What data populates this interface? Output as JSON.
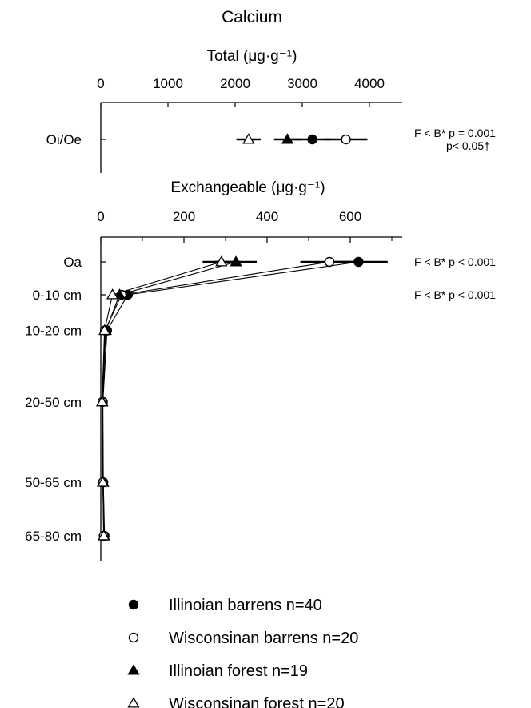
{
  "chart_data": [
    {
      "type": "scatter",
      "title": "Calcium",
      "xlabel": "Total (μg·g⁻¹)",
      "xlim": [
        0,
        4500
      ],
      "x_ticks": [
        0,
        1000,
        2000,
        3000,
        4000
      ],
      "categories": [
        "Oi/Oe"
      ],
      "series": [
        {
          "name": "Illinoian barrens",
          "marker": "filled-circle",
          "values": [
            3150
          ],
          "error": [
            280
          ]
        },
        {
          "name": "Wisconsinan barrens",
          "marker": "open-circle",
          "values": [
            3650
          ],
          "error": [
            320
          ]
        },
        {
          "name": "Illinoian forest",
          "marker": "filled-triangle",
          "values": [
            2780
          ],
          "error": [
            200
          ]
        },
        {
          "name": "Wisconsinan forest",
          "marker": "open-triangle",
          "values": [
            2200
          ],
          "error": [
            180
          ]
        }
      ],
      "annotations": [
        {
          "category": "Oi/Oe",
          "lines": [
            "F < B*   p = 0.001",
            "p< 0.05†"
          ]
        }
      ]
    },
    {
      "type": "line",
      "xlabel": "Exchangeable (μg·g⁻¹)",
      "xlim": [
        0,
        700
      ],
      "x_ticks": [
        0,
        200,
        400,
        600
      ],
      "categories": [
        "Oa",
        "0-10 cm",
        "10-20 cm",
        "20-50 cm",
        "50-65 cm",
        "65-80 cm"
      ],
      "category_depth_cm": [
        -8,
        0,
        10,
        20,
        50,
        65,
        80
      ],
      "series": [
        {
          "name": "Illinoian barrens",
          "marker": "filled-circle",
          "values": [
            620,
            65,
            15,
            5,
            6,
            9
          ],
          "error": [
            70,
            0,
            0,
            0,
            0,
            0
          ]
        },
        {
          "name": "Wisconsinan barrens",
          "marker": "open-circle",
          "values": [
            550,
            50,
            10,
            4,
            5,
            7
          ],
          "error": [
            70,
            0,
            0,
            0,
            0,
            0
          ]
        },
        {
          "name": "Illinoian forest",
          "marker": "filled-triangle",
          "values": [
            325,
            45,
            12,
            4,
            6,
            8
          ],
          "error": [
            50,
            0,
            0,
            0,
            0,
            0
          ]
        },
        {
          "name": "Wisconsinan forest",
          "marker": "open-triangle",
          "values": [
            290,
            28,
            9,
            3,
            5,
            7
          ],
          "error": [
            45,
            0,
            0,
            0,
            0,
            0
          ]
        }
      ],
      "annotations": [
        {
          "category": "Oa",
          "lines": [
            "F < B*   p < 0.001"
          ]
        },
        {
          "category": "0-10 cm",
          "lines": [
            "F < B*   p < 0.001"
          ]
        }
      ]
    }
  ],
  "legend": {
    "placement": "bottom",
    "items": [
      {
        "label": "Illinoian barrens   n=40",
        "marker": "filled-circle"
      },
      {
        "label": "Wisconsinan barrens   n=20",
        "marker": "open-circle"
      },
      {
        "label": "Illinoian forest   n=19",
        "marker": "filled-triangle"
      },
      {
        "label": "Wisconsinan forest   n=20",
        "marker": "open-triangle"
      }
    ]
  },
  "colors": {
    "ink": "#000000",
    "open_fill": "#ffffff"
  }
}
